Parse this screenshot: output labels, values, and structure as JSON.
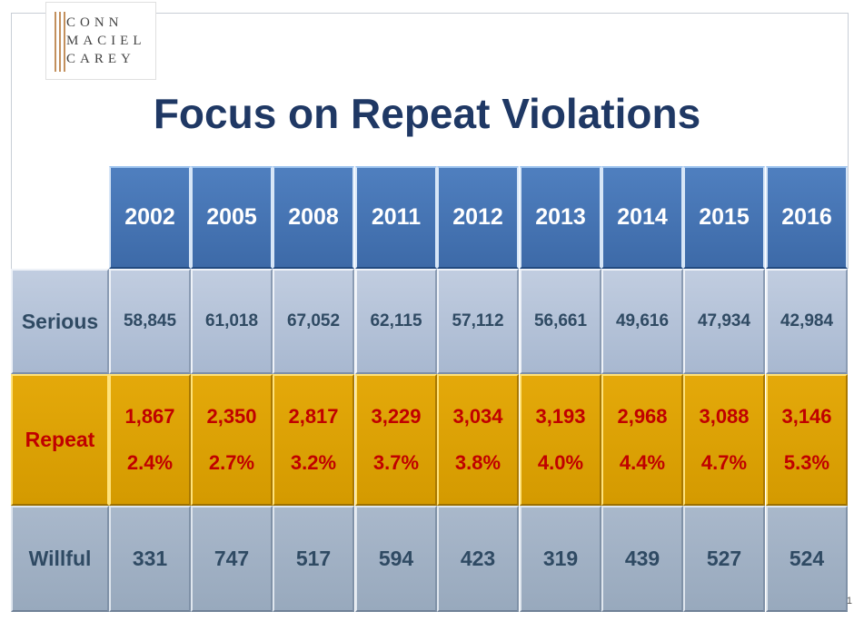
{
  "logo": {
    "line1": "CONN",
    "line2": "MACIEL",
    "line3": "CAREY"
  },
  "title": "Focus on Repeat Violations",
  "table": {
    "years": [
      "2002",
      "2005",
      "2008",
      "2011",
      "2012",
      "2013",
      "2014",
      "2015",
      "2016"
    ],
    "rows": {
      "serious": {
        "label": "Serious",
        "values": [
          "58,845",
          "61,018",
          "67,052",
          "62,115",
          "57,112",
          "56,661",
          "49,616",
          "47,934",
          "42,984"
        ]
      },
      "repeat": {
        "label": "Repeat",
        "values": [
          "1,867",
          "2,350",
          "2,817",
          "3,229",
          "3,034",
          "3,193",
          "2,968",
          "3,088",
          "3,146"
        ],
        "percents": [
          "2.4%",
          "2.7%",
          "3.2%",
          "3.7%",
          "3.8%",
          "4.0%",
          "4.4%",
          "4.7%",
          "5.3%"
        ]
      },
      "willful": {
        "label": "Willful",
        "values": [
          "331",
          "747",
          "517",
          "594",
          "423",
          "319",
          "439",
          "527",
          "524"
        ]
      }
    }
  },
  "page_number": "1"
}
